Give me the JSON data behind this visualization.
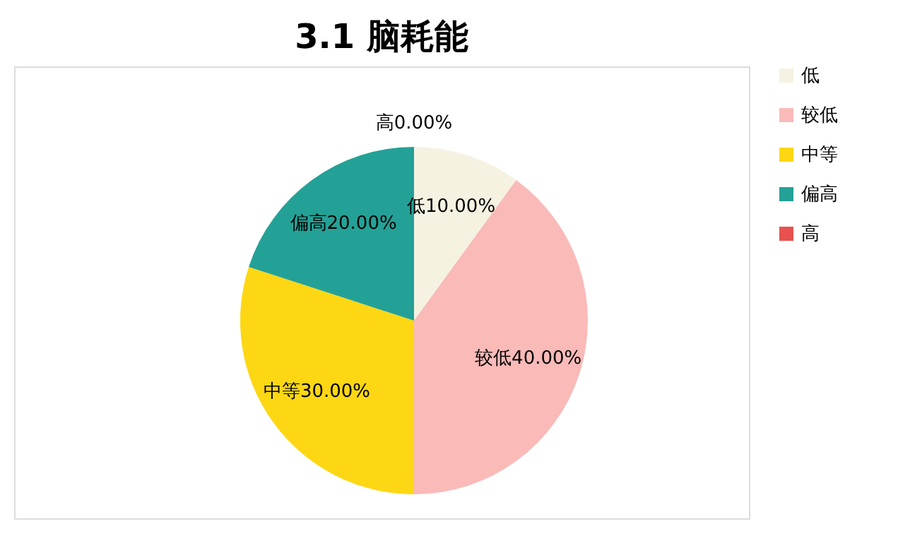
{
  "chart_data": {
    "type": "pie",
    "title": "3.1 脑耗能",
    "categories": [
      "低",
      "较低",
      "中等",
      "偏高",
      "高"
    ],
    "values": [
      10,
      40,
      30,
      20,
      0
    ],
    "value_labels": [
      "10.00%",
      "40.00%",
      "30.00%",
      "20.00%",
      "0.00%"
    ],
    "colors": [
      "#f6f2e2",
      "#f9bab8",
      "#fdd714",
      "#24a196",
      "#e8514e"
    ],
    "legend": "right"
  }
}
